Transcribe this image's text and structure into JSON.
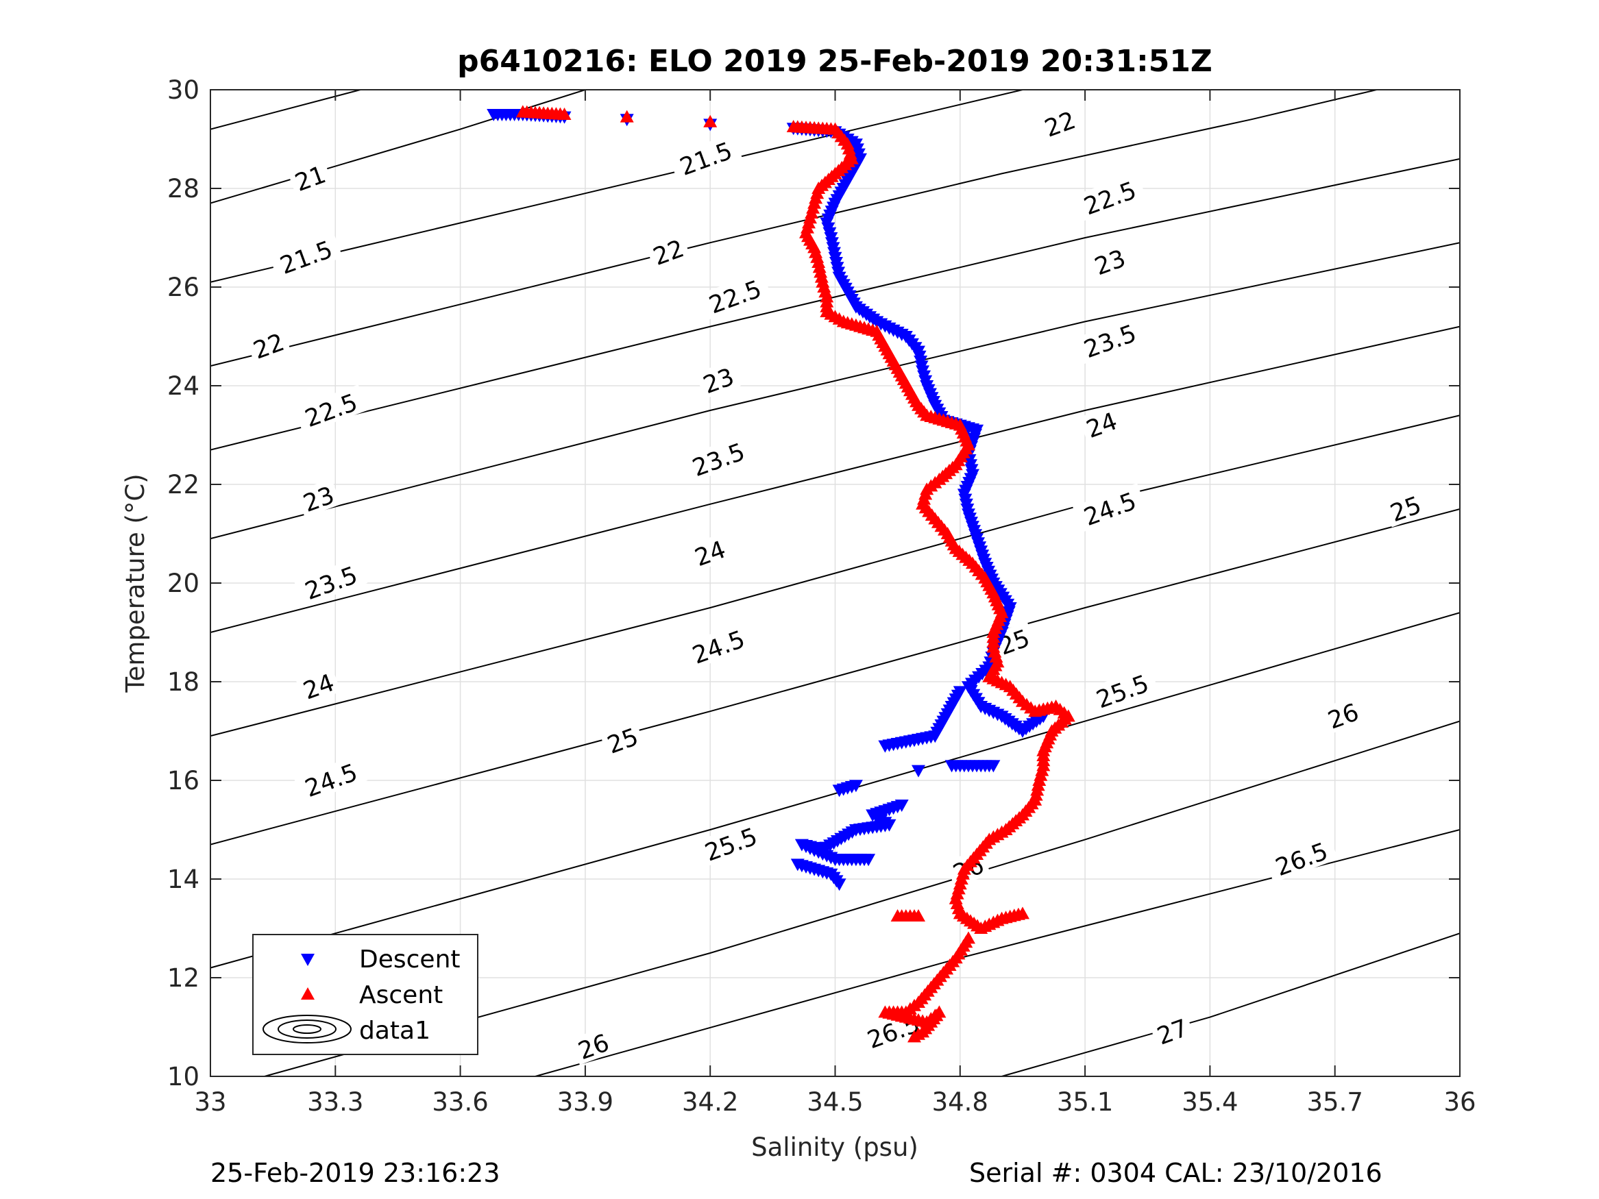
{
  "title": "p6410216: ELO 2019 25-Feb-2019 20:31:51Z",
  "footer_left": "25-Feb-2019 23:16:23",
  "footer_right": "Serial #: 0304  CAL: 23/10/2016",
  "colors": {
    "descent": "#0000ff",
    "ascent": "#ff0000",
    "contour": "#000000",
    "grid": "#e0e0e0"
  },
  "chart_data": {
    "type": "scatter",
    "title": "p6410216: ELO 2019 25-Feb-2019 20:31:51Z",
    "xlabel": "Salinity (psu)",
    "ylabel": "Temperature (°C)",
    "xlim": [
      33,
      36
    ],
    "ylim": [
      10,
      30
    ],
    "xticks": [
      33,
      33.3,
      33.6,
      33.9,
      34.2,
      34.5,
      34.8,
      35.1,
      35.4,
      35.7,
      36
    ],
    "xtick_labels": [
      "33",
      "33.3",
      "33.6",
      "33.9",
      "34.2",
      "34.5",
      "34.8",
      "35.1",
      "35.4",
      "35.7",
      "36"
    ],
    "yticks": [
      10,
      12,
      14,
      16,
      18,
      20,
      22,
      24,
      26,
      28,
      30
    ],
    "ytick_labels": [
      "10",
      "12",
      "14",
      "16",
      "18",
      "20",
      "22",
      "24",
      "26",
      "28",
      "30"
    ],
    "grid": true,
    "legend": {
      "position": "bottom-left",
      "entries": [
        "Descent",
        "Ascent",
        "data1"
      ]
    },
    "contours": [
      {
        "level": "21",
        "points": [
          [
            33,
            29.2
          ],
          [
            33.36,
            30
          ]
        ]
      },
      {
        "level": "21.5",
        "points": [
          [
            33,
            27.7
          ],
          [
            33.6,
            29.2
          ],
          [
            33.9,
            30
          ]
        ]
      },
      {
        "level": "22",
        "points": [
          [
            33,
            26.1
          ],
          [
            34,
            28.1
          ],
          [
            34.5,
            29.1
          ],
          [
            34.95,
            30
          ]
        ]
      },
      {
        "level": "22.5",
        "points": [
          [
            33,
            24.4
          ],
          [
            34.2,
            26.9
          ],
          [
            34.9,
            28.3
          ],
          [
            35.5,
            29.4
          ],
          [
            35.8,
            30
          ]
        ]
      },
      {
        "level": "23",
        "points": [
          [
            33,
            22.7
          ],
          [
            34.2,
            25.2
          ],
          [
            35.1,
            27
          ],
          [
            36,
            28.6
          ]
        ]
      },
      {
        "level": "23.5",
        "points": [
          [
            33,
            20.9
          ],
          [
            34.2,
            23.5
          ],
          [
            35.1,
            25.3
          ],
          [
            36,
            26.9
          ]
        ]
      },
      {
        "level": "24",
        "points": [
          [
            33,
            19
          ],
          [
            34.2,
            21.6
          ],
          [
            35.1,
            23.5
          ],
          [
            36,
            25.2
          ]
        ]
      },
      {
        "level": "24.5",
        "points": [
          [
            33,
            16.9
          ],
          [
            34.2,
            19.5
          ],
          [
            35.1,
            21.6
          ],
          [
            36,
            23.4
          ]
        ]
      },
      {
        "level": "25",
        "points": [
          [
            33,
            14.7
          ],
          [
            34.2,
            17.4
          ],
          [
            35.1,
            19.5
          ],
          [
            36,
            21.5
          ]
        ]
      },
      {
        "level": "25.5",
        "points": [
          [
            33,
            12.2
          ],
          [
            34.2,
            15
          ],
          [
            35.1,
            17.2
          ],
          [
            36,
            19.4
          ]
        ]
      },
      {
        "level": "26",
        "points": [
          [
            33.13,
            10
          ],
          [
            34.2,
            12.5
          ],
          [
            35.1,
            14.8
          ],
          [
            36,
            17.2
          ]
        ]
      },
      {
        "level": "26.5",
        "points": [
          [
            33.78,
            10
          ],
          [
            34.8,
            12.4
          ],
          [
            36,
            15
          ]
        ]
      },
      {
        "level": "27",
        "points": [
          [
            34.9,
            10
          ],
          [
            35.4,
            11.2
          ],
          [
            36,
            12.9
          ]
        ]
      }
    ],
    "contour_labels": [
      {
        "text": "21",
        "at": [
          33.24,
          28.2
        ]
      },
      {
        "text": "21.5",
        "at": [
          34.19,
          28.6
        ]
      },
      {
        "text": "22",
        "at": [
          35.04,
          29.3
        ]
      },
      {
        "text": "21.5",
        "at": [
          33.23,
          26.6
        ]
      },
      {
        "text": "22",
        "at": [
          34.1,
          26.7
        ]
      },
      {
        "text": "22.5",
        "at": [
          35.16,
          27.8
        ]
      },
      {
        "text": "22",
        "at": [
          33.14,
          24.8
        ]
      },
      {
        "text": "22.5",
        "at": [
          34.26,
          25.8
        ]
      },
      {
        "text": "23",
        "at": [
          35.16,
          26.5
        ]
      },
      {
        "text": "22.5",
        "at": [
          33.29,
          23.5
        ]
      },
      {
        "text": "23",
        "at": [
          34.22,
          24.1
        ]
      },
      {
        "text": "23.5",
        "at": [
          35.16,
          24.9
        ]
      },
      {
        "text": "23",
        "at": [
          33.26,
          21.7
        ]
      },
      {
        "text": "23.5",
        "at": [
          34.22,
          22.5
        ]
      },
      {
        "text": "24",
        "at": [
          35.14,
          23.2
        ]
      },
      {
        "text": "23.5",
        "at": [
          33.29,
          20
        ]
      },
      {
        "text": "24",
        "at": [
          34.2,
          20.6
        ]
      },
      {
        "text": "24.5",
        "at": [
          35.16,
          21.5
        ]
      },
      {
        "text": "25",
        "at": [
          35.87,
          21.5
        ]
      },
      {
        "text": "24",
        "at": [
          33.26,
          17.9
        ]
      },
      {
        "text": "24.5",
        "at": [
          34.22,
          18.7
        ]
      },
      {
        "text": "25",
        "at": [
          34.93,
          18.8
        ]
      },
      {
        "text": "24.5",
        "at": [
          33.29,
          16
        ]
      },
      {
        "text": "25",
        "at": [
          33.99,
          16.8
        ]
      },
      {
        "text": "25.5",
        "at": [
          35.19,
          17.8
        ]
      },
      {
        "text": "26",
        "at": [
          35.72,
          17.3
        ]
      },
      {
        "text": "25.5",
        "at": [
          34.25,
          14.7
        ]
      },
      {
        "text": "26",
        "at": [
          34.82,
          14.2
        ]
      },
      {
        "text": "26.5",
        "at": [
          35.62,
          14.4
        ]
      },
      {
        "text": "25.5",
        "at": [
          33.37,
          11
        ]
      },
      {
        "text": "26",
        "at": [
          33.92,
          10.6
        ]
      },
      {
        "text": "26.5",
        "at": [
          34.64,
          10.9
        ]
      },
      {
        "text": "27",
        "at": [
          35.31,
          10.9
        ]
      }
    ],
    "series": [
      {
        "name": "Descent",
        "marker": "triangle-down",
        "color": "#0000ff",
        "points": [
          [
            33.68,
            29.5
          ],
          [
            33.75,
            29.5
          ],
          [
            33.85,
            29.45
          ],
          [
            34.0,
            29.4
          ],
          [
            34.2,
            29.3
          ],
          [
            34.4,
            29.22
          ],
          [
            34.5,
            29.15
          ],
          [
            34.55,
            28.9
          ],
          [
            34.56,
            28.6
          ],
          [
            34.54,
            28.3
          ],
          [
            34.52,
            28.0
          ],
          [
            34.5,
            27.7
          ],
          [
            34.48,
            27.3
          ],
          [
            34.49,
            27.0
          ],
          [
            34.5,
            26.6
          ],
          [
            34.51,
            26.2
          ],
          [
            34.53,
            25.9
          ],
          [
            34.55,
            25.6
          ],
          [
            34.6,
            25.3
          ],
          [
            34.67,
            25.0
          ],
          [
            34.7,
            24.7
          ],
          [
            34.71,
            24.3
          ],
          [
            34.72,
            24.0
          ],
          [
            34.74,
            23.6
          ],
          [
            34.76,
            23.3
          ],
          [
            34.84,
            23.1
          ],
          [
            34.82,
            22.6
          ],
          [
            34.83,
            22.2
          ],
          [
            34.81,
            21.8
          ],
          [
            34.82,
            21.4
          ],
          [
            34.84,
            20.9
          ],
          [
            34.86,
            20.4
          ],
          [
            34.88,
            20.0
          ],
          [
            34.92,
            19.5
          ],
          [
            34.9,
            19.0
          ],
          [
            34.88,
            18.6
          ],
          [
            34.87,
            18.3
          ],
          [
            34.82,
            17.9
          ],
          [
            34.85,
            17.5
          ],
          [
            34.9,
            17.3
          ],
          [
            34.95,
            17.0
          ],
          [
            35.0,
            17.3
          ],
          [
            34.8,
            17.8
          ],
          [
            34.74,
            16.9
          ],
          [
            34.62,
            16.7
          ],
          [
            34.78,
            16.3
          ],
          [
            34.88,
            16.3
          ],
          [
            34.7,
            16.2
          ],
          [
            34.55,
            15.9
          ],
          [
            34.51,
            15.8
          ],
          [
            34.66,
            15.5
          ],
          [
            34.59,
            15.3
          ],
          [
            34.63,
            15.1
          ],
          [
            34.55,
            15.0
          ],
          [
            34.47,
            14.6
          ],
          [
            34.42,
            14.7
          ],
          [
            34.5,
            14.4
          ],
          [
            34.53,
            14.4
          ],
          [
            34.58,
            14.4
          ],
          [
            34.41,
            14.3
          ],
          [
            34.49,
            14.1
          ],
          [
            34.51,
            13.9
          ]
        ]
      },
      {
        "name": "Ascent",
        "marker": "triangle-up",
        "color": "#ff0000",
        "points": [
          [
            33.75,
            29.55
          ],
          [
            33.85,
            29.5
          ],
          [
            34.0,
            29.45
          ],
          [
            34.2,
            29.35
          ],
          [
            34.4,
            29.25
          ],
          [
            34.5,
            29.2
          ],
          [
            34.53,
            28.9
          ],
          [
            34.54,
            28.6
          ],
          [
            34.5,
            28.3
          ],
          [
            34.46,
            28.0
          ],
          [
            34.45,
            27.7
          ],
          [
            34.44,
            27.4
          ],
          [
            34.43,
            27.1
          ],
          [
            34.45,
            26.8
          ],
          [
            34.46,
            26.5
          ],
          [
            34.47,
            26.1
          ],
          [
            34.48,
            25.8
          ],
          [
            34.48,
            25.5
          ],
          [
            34.52,
            25.3
          ],
          [
            34.6,
            25.1
          ],
          [
            34.62,
            24.8
          ],
          [
            34.64,
            24.5
          ],
          [
            34.66,
            24.2
          ],
          [
            34.68,
            23.9
          ],
          [
            34.7,
            23.6
          ],
          [
            34.72,
            23.4
          ],
          [
            34.8,
            23.2
          ],
          [
            34.82,
            22.8
          ],
          [
            34.79,
            22.4
          ],
          [
            34.75,
            22.1
          ],
          [
            34.72,
            21.9
          ],
          [
            34.71,
            21.6
          ],
          [
            34.74,
            21.3
          ],
          [
            34.77,
            21.0
          ],
          [
            34.79,
            20.7
          ],
          [
            34.83,
            20.4
          ],
          [
            34.86,
            20.1
          ],
          [
            34.88,
            19.8
          ],
          [
            34.9,
            19.4
          ],
          [
            34.88,
            19.0
          ],
          [
            34.88,
            18.7
          ],
          [
            34.89,
            18.4
          ],
          [
            34.87,
            18.1
          ],
          [
            34.92,
            17.9
          ],
          [
            34.95,
            17.6
          ],
          [
            34.98,
            17.4
          ],
          [
            35.03,
            17.5
          ],
          [
            35.06,
            17.3
          ],
          [
            35.02,
            17.0
          ],
          [
            35.0,
            16.6
          ],
          [
            35.0,
            16.3
          ],
          [
            34.99,
            16.0
          ],
          [
            34.98,
            15.6
          ],
          [
            34.95,
            15.3
          ],
          [
            34.91,
            15.0
          ],
          [
            34.87,
            14.8
          ],
          [
            34.84,
            14.5
          ],
          [
            34.81,
            14.2
          ],
          [
            34.8,
            13.9
          ],
          [
            34.79,
            13.6
          ],
          [
            34.8,
            13.3
          ],
          [
            34.85,
            13.0
          ],
          [
            34.9,
            13.2
          ],
          [
            34.95,
            13.3
          ],
          [
            34.7,
            13.25
          ],
          [
            34.65,
            13.25
          ],
          [
            34.82,
            12.8
          ],
          [
            34.79,
            12.4
          ],
          [
            34.76,
            12.1
          ],
          [
            34.73,
            11.8
          ],
          [
            34.7,
            11.5
          ],
          [
            34.67,
            11.3
          ],
          [
            34.62,
            11.3
          ],
          [
            34.72,
            11.1
          ],
          [
            34.75,
            11.3
          ],
          [
            34.71,
            10.9
          ],
          [
            34.69,
            10.8
          ]
        ]
      }
    ]
  }
}
